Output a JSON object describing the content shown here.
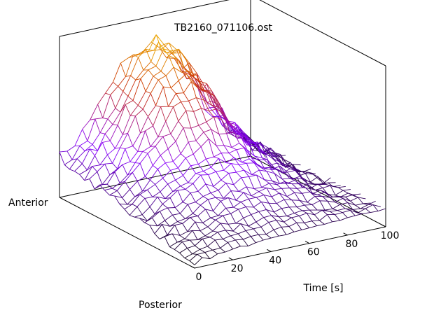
{
  "chart_data": {
    "type": "surface",
    "title": "TB2160_071106.ost",
    "xlabel": "Time [s]",
    "y_axis_end_labels": [
      "Posterior",
      "Anterior"
    ],
    "x_ticks": [
      0,
      20,
      40,
      60,
      80,
      100
    ],
    "xlim": [
      0,
      100
    ],
    "grid": false,
    "legend": "none",
    "colormap": [
      "#000000",
      "#8800ff",
      "#cc3300",
      "#ffee00"
    ],
    "surface_description_values": {
      "rows": 28,
      "time_samples": [
        0,
        4,
        8,
        12,
        16,
        20,
        24,
        28,
        32,
        36,
        40,
        44,
        48,
        52,
        56,
        60,
        64,
        68,
        72,
        76,
        80,
        84,
        88,
        92,
        96,
        100
      ],
      "posterior_edge_height": [
        0.05,
        0.07,
        0.08,
        0.09,
        0.1,
        0.11,
        0.12,
        0.12,
        0.13,
        0.13,
        0.14,
        0.14,
        0.15,
        0.15,
        0.15,
        0.16,
        0.16,
        0.16,
        0.17,
        0.17,
        0.17,
        0.18,
        0.18,
        0.18,
        0.19,
        0.19
      ],
      "anterior_edge_height": [
        0.38,
        0.42,
        0.48,
        0.55,
        0.62,
        0.7,
        0.76,
        0.82,
        0.88,
        0.92,
        0.95,
        0.97,
        0.98,
        0.96,
        0.93,
        0.88,
        0.82,
        0.74,
        0.66,
        0.58,
        0.48,
        0.4,
        0.32,
        0.25,
        0.18,
        0.12
      ]
    }
  }
}
